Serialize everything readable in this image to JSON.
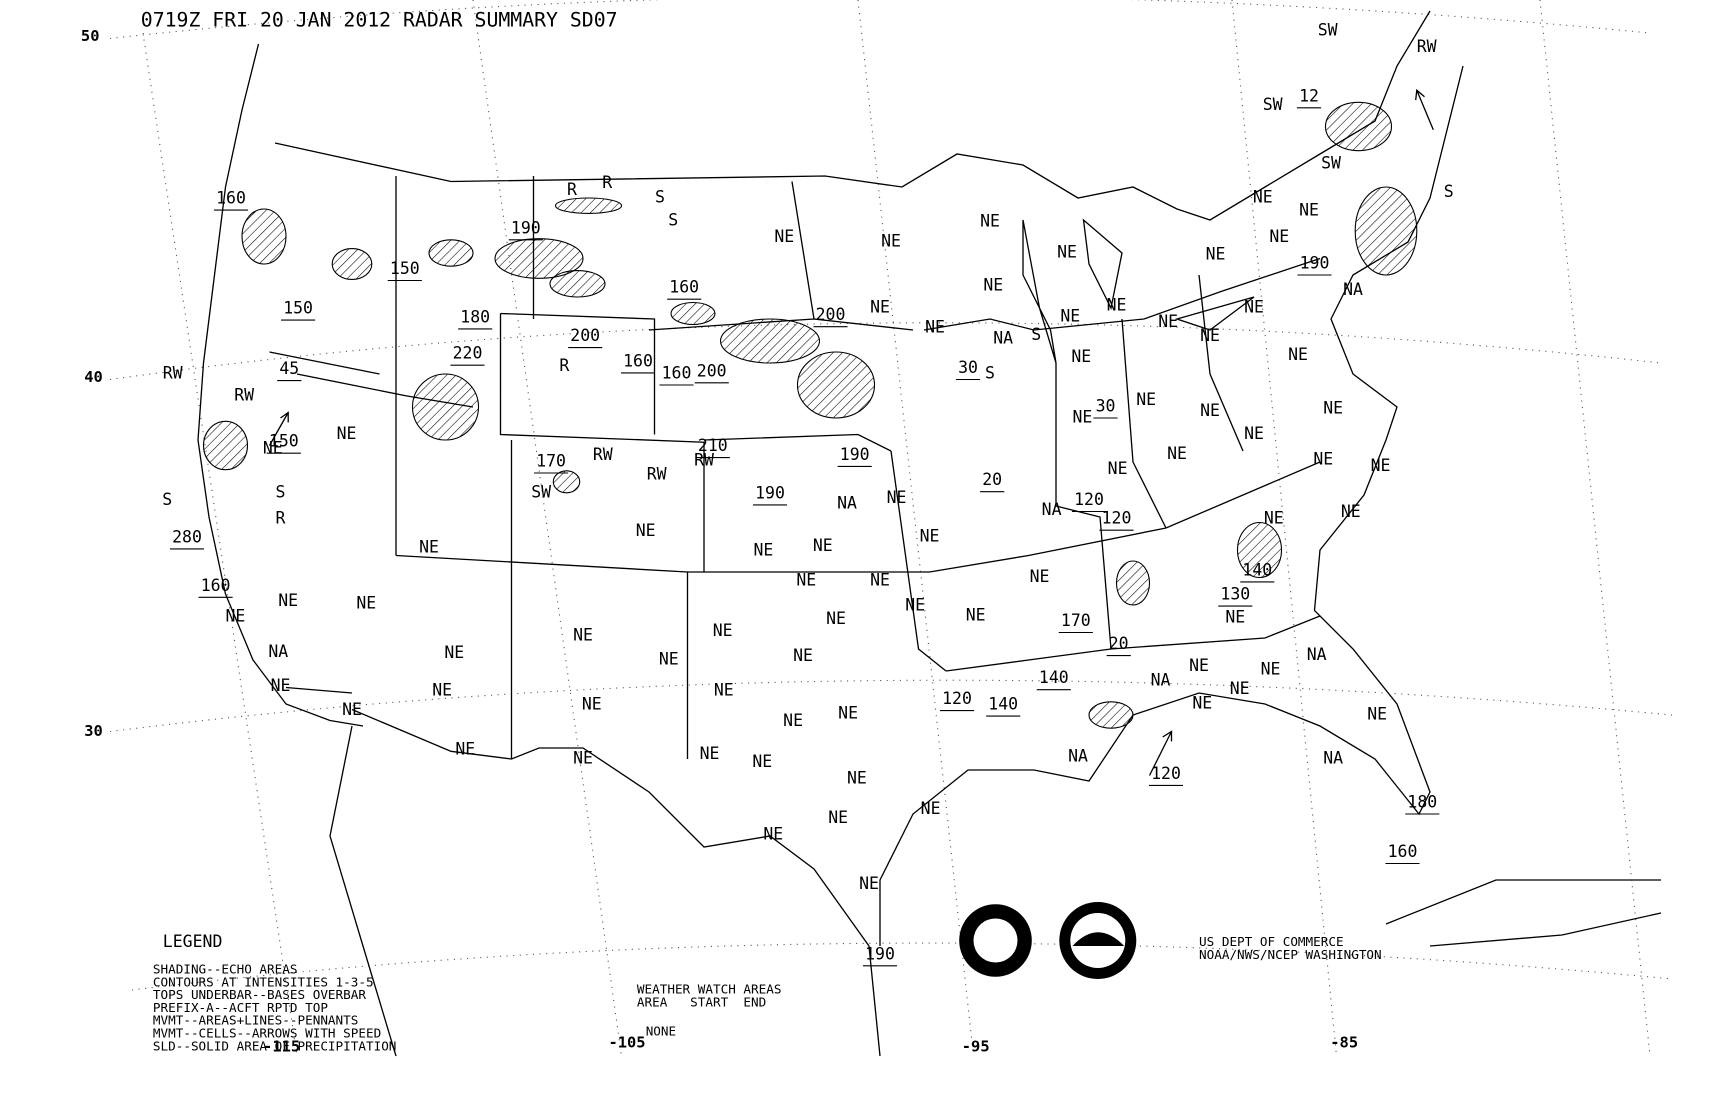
{
  "header": {
    "title": "0719Z FRI 20 JAN 2012 RADAR SUMMARY SD07"
  },
  "latitude_labels": [
    "50",
    "40",
    "30"
  ],
  "longitude_labels": [
    "-115",
    "-105",
    "-95",
    "-85"
  ],
  "legend": {
    "title": "LEGEND",
    "lines": [
      "SHADING--ECHO AREAS",
      "CONTOURS AT INTENSITIES 1-3-5",
      "TOPS UNDERBAR--BASES OVERBAR",
      "PREFIX-A--ACFT RPTD TOP",
      "MVMT--AREAS+LINES--PENNANTS",
      "MVMT--CELLS--ARROWS WITH SPEED",
      "SLD--SOLID AREA OF PRECIPITATION"
    ]
  },
  "watch": {
    "title": "WEATHER WATCH AREAS",
    "columns": "AREA   START  END",
    "entries": "NONE"
  },
  "agency": [
    "US DEPT OF COMMERCE",
    "NOAA/NWS/NCEP WASHINGTON"
  ],
  "map_labels": [
    "NE",
    "NE",
    "NE",
    "NE",
    "NE",
    "NE",
    "NE",
    "NE",
    "NE",
    "NE",
    "NE",
    "NE",
    "NE",
    "NE",
    "NA",
    "NE",
    "NE",
    "NE",
    "NE",
    "NE",
    "NE",
    "30",
    "NE",
    "NA",
    "30",
    "NE",
    "NE",
    "200",
    "160",
    "160",
    "160",
    "200",
    "200",
    "180",
    "190",
    "150",
    "150",
    "160",
    "220",
    "45",
    "150",
    "NE",
    "NE",
    "170",
    "210",
    "190",
    "190",
    "NA",
    "NE",
    "NE",
    "NE",
    "NE",
    "NE",
    "NE",
    "NE",
    "NE",
    "NE",
    "NE",
    "NE",
    "280",
    "160",
    "NE",
    "NE",
    "NE",
    "NA",
    "NE",
    "NE",
    "NE",
    "NE",
    "NE",
    "NE",
    "NE",
    "NE",
    "NE",
    "NE",
    "NE",
    "NE",
    "NE",
    "NE",
    "NE",
    "NE",
    "NE",
    "NE",
    "NE",
    "NE",
    "NE",
    "NE",
    "190",
    "120",
    "140",
    "170",
    "20",
    "NA",
    "NE",
    "NE",
    "NE",
    "NE",
    "NA",
    "NE",
    "NA",
    "180",
    "160",
    "NA",
    "120",
    "140",
    "140",
    "130",
    "NE",
    "NE",
    "NE",
    "NE",
    "NE",
    "NE",
    "NE",
    "20",
    "NA",
    "120",
    "120",
    "190",
    "12",
    "S",
    "RW",
    "SW",
    "S",
    "S",
    "R",
    "R",
    "R",
    "RW",
    "SW",
    "RW",
    "RW",
    "RW",
    "RW",
    "S",
    "R",
    "S",
    "SW",
    "SW",
    "S",
    "S"
  ]
}
